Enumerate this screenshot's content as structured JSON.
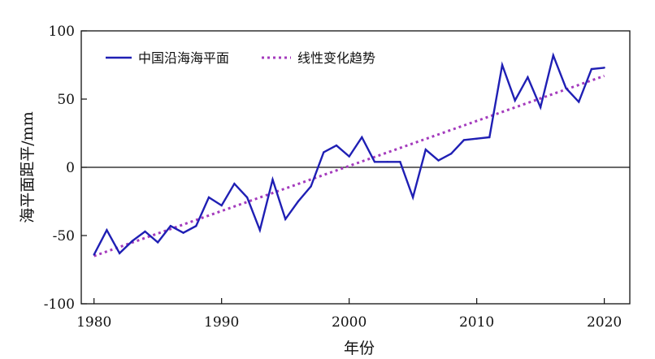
{
  "chart_data": {
    "type": "line",
    "xlabel": "年份",
    "ylabel": "海平面距平/mm",
    "xlim": [
      1979,
      2022
    ],
    "ylim": [
      -100,
      100
    ],
    "xticks": [
      1980,
      1990,
      2000,
      2010,
      2020
    ],
    "yticks": [
      -100,
      -50,
      0,
      50,
      100
    ],
    "reference_line_y": 0,
    "legend_position": "top-left",
    "grid": false,
    "x": [
      1980,
      1981,
      1982,
      1983,
      1984,
      1985,
      1986,
      1987,
      1988,
      1989,
      1990,
      1991,
      1992,
      1993,
      1994,
      1995,
      1996,
      1997,
      1998,
      1999,
      2000,
      2001,
      2002,
      2003,
      2004,
      2005,
      2006,
      2007,
      2008,
      2009,
      2010,
      2011,
      2012,
      2013,
      2014,
      2015,
      2016,
      2017,
      2018,
      2019,
      2020
    ],
    "series": [
      {
        "name": "中国沿海海平面",
        "style": "solid",
        "color": "#1f1fb4",
        "values": [
          -64,
          -46,
          -63,
          -54,
          -47,
          -55,
          -43,
          -48,
          -43,
          -22,
          -28,
          -12,
          -22,
          -46,
          -9,
          -38,
          -25,
          -14,
          11,
          16,
          8,
          22,
          4,
          4,
          4,
          -22,
          13,
          5,
          10,
          20,
          21,
          22,
          75,
          49,
          66,
          44,
          82,
          58,
          48,
          72,
          73
        ]
      },
      {
        "name": "线性变化趋势",
        "style": "dotted",
        "color": "#a43bbd",
        "values": [
          -65,
          67
        ],
        "x": [
          1980,
          2020
        ]
      }
    ]
  }
}
